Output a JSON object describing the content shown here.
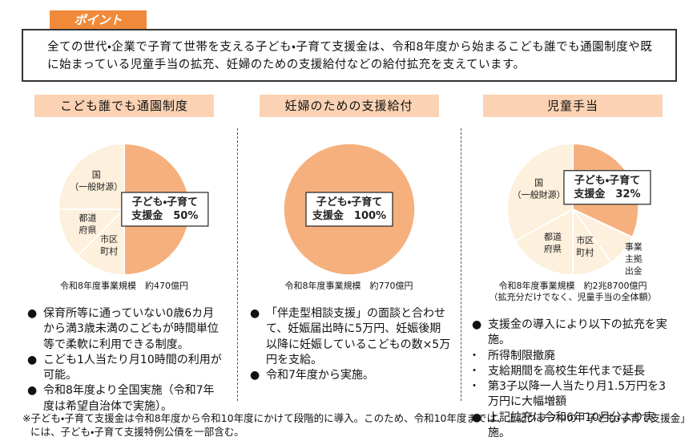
{
  "tab": "ポイント",
  "summary": "全ての世代・企業で子育て世帯を支える子ども・子育て支援金は、令和8年度から始まるこども誰でも通園制度や既に始まっている児童手当の拡充、妊婦のための支援給付などの給付拡充を支えています。",
  "columns": [
    {
      "heading": "こども誰でも通園制度",
      "pie": {
        "type": "pie",
        "slices": [
          {
            "label": [
              "子ども・子育て",
              "支援金　50%"
            ],
            "value": 50,
            "color": "#f6b07e",
            "boxed": true,
            "outside": false
          },
          {
            "label": [
              "市区",
              "町村"
            ],
            "value": 12.5,
            "color": "#fdf0dc",
            "boxed": false,
            "outside": false
          },
          {
            "label": [
              "都道",
              "府県"
            ],
            "value": 12.5,
            "color": "#fdf0dc",
            "boxed": false,
            "outside": false
          },
          {
            "label": [
              "国",
              "（一般財源）"
            ],
            "value": 25,
            "color": "#fdf0dc",
            "boxed": false,
            "outside": false
          }
        ]
      },
      "caption": [
        "令和8年度事業規模　約470億円"
      ],
      "bullets": [
        {
          "text": "保育所等に通っていない0歳6カ月から満3歳未満のこどもが時間単位等で柔軟に利用できる制度。",
          "sub": false
        },
        {
          "text": "こども1人当たり月10時間の利用が可能。",
          "sub": false
        },
        {
          "text": "令和8年度より全国実施（令和7年度は希望自治体で実施）。",
          "sub": false
        }
      ]
    },
    {
      "heading": "妊婦のための支援給付",
      "pie": {
        "type": "pie",
        "slices": [
          {
            "label": [
              "子ども・子育て",
              "支援金　100%"
            ],
            "value": 100,
            "color": "#f6b07e",
            "boxed": true,
            "outside": false
          }
        ]
      },
      "caption": [
        "令和8年度事業規模　約770億円"
      ],
      "bullets": [
        {
          "text": "「伴走型相談支援」の面談と合わせて、妊娠届出時に5万円、妊娠後期以降に妊娠しているこどもの数×5万円を支給。",
          "sub": false
        },
        {
          "text": "令和7年度から実施。",
          "sub": false
        }
      ]
    },
    {
      "heading": "児童手当",
      "pie": {
        "type": "pie",
        "slices": [
          {
            "label": [
              "子ども・子育て",
              "支援金　32%"
            ],
            "value": 32,
            "color": "#f6b07e",
            "boxed": true,
            "outside": false
          },
          {
            "label": [
              "事業",
              "主拠",
              "出金"
            ],
            "value": 8,
            "color": "#fdf0dc",
            "boxed": false,
            "outside": true
          },
          {
            "label": [
              "市区",
              "町村"
            ],
            "value": 10,
            "color": "#fdf0dc",
            "boxed": false,
            "outside": false
          },
          {
            "label": [
              "都道",
              "府県"
            ],
            "value": 17,
            "color": "#fdf0dc",
            "boxed": false,
            "outside": false
          },
          {
            "label": [
              "国",
              "（一般財源）"
            ],
            "value": 33,
            "color": "#fdf0dc",
            "boxed": false,
            "outside": false
          }
        ]
      },
      "caption": [
        "令和8年度事業規模　約2兆8700億円",
        "（拡充分だけでなく、児童手当の全体額）"
      ],
      "bullets": [
        {
          "text": "支援金の導入により以下の拡充を実施。",
          "sub": false
        },
        {
          "text": "所得制限撤廃",
          "sub": true
        },
        {
          "text": "支給期間を高校生年代まで延長",
          "sub": true
        },
        {
          "text": "第3子以降一人当たり月1.5万円を3万円に大幅増額",
          "sub": true
        },
        {
          "text": "上記拡充は令和6年10月分より実施。",
          "sub": false
        }
      ]
    }
  ],
  "footnote": "※子ども・子育て支援金は令和8年度から令和10年度にかけて段階的に導入。このため、令和10年度までは、上記グラフ中の「子ども・子育て支援金」には、子ども・子育て支援特例公債を一部含む。"
}
